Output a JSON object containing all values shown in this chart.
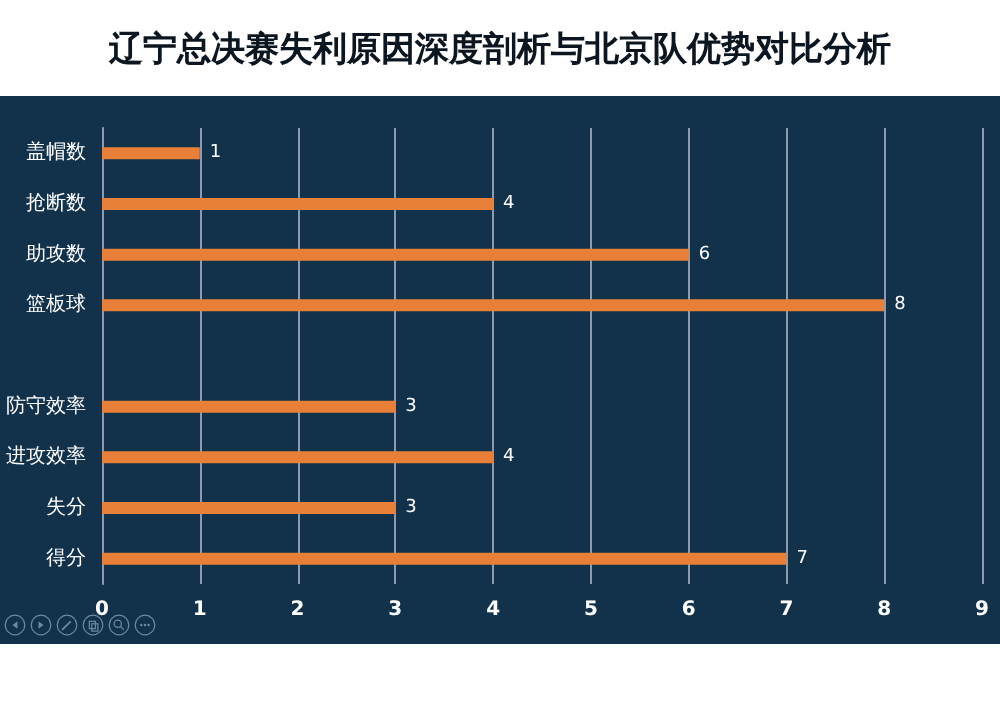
{
  "chart_data": {
    "type": "bar",
    "orientation": "horizontal",
    "title": "辽宁总决赛失利原因深度剖析与北京队优势对比分析",
    "categories": [
      "盖帽数",
      "抢断数",
      "助攻数",
      "篮板球",
      null,
      "防守效率",
      "进攻效率",
      "失分",
      "得分"
    ],
    "values": [
      1,
      4,
      6,
      8,
      null,
      3,
      4,
      3,
      7
    ],
    "color": "#e8803a",
    "xlim": [
      0,
      9
    ],
    "xticks": [
      0,
      1,
      2,
      3,
      4,
      5,
      6,
      7,
      8,
      9
    ],
    "grid": "x",
    "data_labels": true
  }
}
